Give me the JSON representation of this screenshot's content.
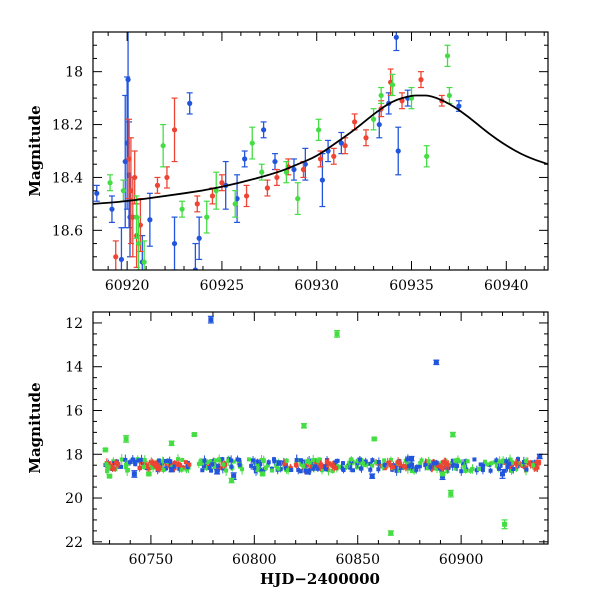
{
  "chart_data": [
    {
      "type": "scatter",
      "panel": "top",
      "xlabel": "",
      "ylabel": "Magnitude",
      "xlim": [
        60918.2,
        60942.2
      ],
      "ylim": [
        18.75,
        17.85
      ],
      "y_inverted": true,
      "xticks": [
        60920,
        60925,
        60930,
        60935,
        60940
      ],
      "yticks": [
        18,
        18.2,
        18.4,
        18.6
      ],
      "ytick_labels": [
        "18",
        "18.2",
        "18.4",
        "18.6"
      ],
      "series": [
        {
          "color": "#2255dd",
          "points": [
            {
              "x": 60918.4,
              "y": 18.46,
              "err": 0.03
            },
            {
              "x": 60919.2,
              "y": 18.52,
              "err": 0.05
            },
            {
              "x": 60919.7,
              "y": 18.71,
              "err": 0.12
            },
            {
              "x": 60919.9,
              "y": 18.34,
              "err": 0.25
            },
            {
              "x": 60920.0,
              "y": 18.27,
              "err": 0.25
            },
            {
              "x": 60920.05,
              "y": 18.03,
              "err": 0.3
            },
            {
              "x": 60920.1,
              "y": 18.39,
              "err": 0.2
            },
            {
              "x": 60920.15,
              "y": 18.55,
              "err": 0.15
            },
            {
              "x": 60920.8,
              "y": 18.72,
              "err": 0.1
            },
            {
              "x": 60921.2,
              "y": 18.56,
              "err": 0.1
            },
            {
              "x": 60922.5,
              "y": 18.65,
              "err": 0.1
            },
            {
              "x": 60923.3,
              "y": 18.12,
              "err": 0.04
            },
            {
              "x": 60923.6,
              "y": 18.75,
              "err": 0.1
            },
            {
              "x": 60923.8,
              "y": 18.63,
              "err": 0.08
            },
            {
              "x": 60925.2,
              "y": 18.43,
              "err": 0.09
            },
            {
              "x": 60925.8,
              "y": 18.48,
              "err": 0.09
            },
            {
              "x": 60926.2,
              "y": 18.33,
              "err": 0.03
            },
            {
              "x": 60927.2,
              "y": 18.22,
              "err": 0.03
            },
            {
              "x": 60927.8,
              "y": 18.34,
              "err": 0.03
            },
            {
              "x": 60928.8,
              "y": 18.37,
              "err": 0.04
            },
            {
              "x": 60929.4,
              "y": 18.35,
              "err": 0.06
            },
            {
              "x": 60930.3,
              "y": 18.41,
              "err": 0.1
            },
            {
              "x": 60930.6,
              "y": 18.3,
              "err": 0.04
            },
            {
              "x": 60931.3,
              "y": 18.27,
              "err": 0.04
            },
            {
              "x": 60933.3,
              "y": 18.2,
              "err": 0.05
            },
            {
              "x": 60933.8,
              "y": 18.12,
              "err": 0.04
            },
            {
              "x": 60934.2,
              "y": 17.87,
              "err": 0.05
            },
            {
              "x": 60934.3,
              "y": 18.3,
              "err": 0.09
            },
            {
              "x": 60934.8,
              "y": 18.1,
              "err": 0.03
            },
            {
              "x": 60937.5,
              "y": 18.13,
              "err": 0.02
            }
          ]
        },
        {
          "color": "#ee4433",
          "points": [
            {
              "x": 60919.4,
              "y": 18.7,
              "err": 0.06
            },
            {
              "x": 60920.1,
              "y": 18.33,
              "err": 0.15
            },
            {
              "x": 60920.2,
              "y": 18.45,
              "err": 0.2
            },
            {
              "x": 60920.3,
              "y": 18.55,
              "err": 0.15
            },
            {
              "x": 60920.4,
              "y": 18.4,
              "err": 0.1
            },
            {
              "x": 60920.5,
              "y": 18.62,
              "err": 0.12
            },
            {
              "x": 60920.7,
              "y": 18.58,
              "err": 0.1
            },
            {
              "x": 60921.6,
              "y": 18.43,
              "err": 0.03
            },
            {
              "x": 60922.1,
              "y": 18.4,
              "err": 0.04
            },
            {
              "x": 60922.5,
              "y": 18.22,
              "err": 0.12
            },
            {
              "x": 60923.7,
              "y": 18.5,
              "err": 0.03
            },
            {
              "x": 60924.5,
              "y": 18.47,
              "err": 0.03
            },
            {
              "x": 60925.0,
              "y": 18.42,
              "err": 0.03
            },
            {
              "x": 60926.3,
              "y": 18.47,
              "err": 0.04
            },
            {
              "x": 60927.4,
              "y": 18.44,
              "err": 0.03
            },
            {
              "x": 60927.9,
              "y": 18.4,
              "err": 0.03
            },
            {
              "x": 60928.5,
              "y": 18.36,
              "err": 0.03
            },
            {
              "x": 60929.3,
              "y": 18.37,
              "err": 0.03
            },
            {
              "x": 60930.2,
              "y": 18.33,
              "err": 0.03
            },
            {
              "x": 60930.9,
              "y": 18.32,
              "err": 0.03
            },
            {
              "x": 60931.5,
              "y": 18.28,
              "err": 0.03
            },
            {
              "x": 60932.0,
              "y": 18.19,
              "err": 0.03
            },
            {
              "x": 60932.6,
              "y": 18.25,
              "err": 0.03
            },
            {
              "x": 60933.4,
              "y": 18.14,
              "err": 0.03
            },
            {
              "x": 60933.9,
              "y": 18.04,
              "err": 0.05
            },
            {
              "x": 60934.5,
              "y": 18.11,
              "err": 0.03
            },
            {
              "x": 60935.5,
              "y": 18.03,
              "err": 0.03
            },
            {
              "x": 60936.6,
              "y": 18.11,
              "err": 0.02
            }
          ]
        },
        {
          "color": "#44dd44",
          "points": [
            {
              "x": 60919.1,
              "y": 18.42,
              "err": 0.03
            },
            {
              "x": 60919.8,
              "y": 18.45,
              "err": 0.04
            },
            {
              "x": 60920.5,
              "y": 18.55,
              "err": 0.08
            },
            {
              "x": 60920.6,
              "y": 18.65,
              "err": 0.1
            },
            {
              "x": 60920.9,
              "y": 18.72,
              "err": 0.08
            },
            {
              "x": 60921.9,
              "y": 18.28,
              "err": 0.08
            },
            {
              "x": 60922.9,
              "y": 18.52,
              "err": 0.03
            },
            {
              "x": 60924.2,
              "y": 18.55,
              "err": 0.06
            },
            {
              "x": 60924.7,
              "y": 18.45,
              "err": 0.07
            },
            {
              "x": 60925.7,
              "y": 18.5,
              "err": 0.05
            },
            {
              "x": 60926.6,
              "y": 18.27,
              "err": 0.06
            },
            {
              "x": 60927.1,
              "y": 18.38,
              "err": 0.03
            },
            {
              "x": 60928.4,
              "y": 18.38,
              "err": 0.04
            },
            {
              "x": 60929.0,
              "y": 18.48,
              "err": 0.06
            },
            {
              "x": 60930.1,
              "y": 18.22,
              "err": 0.04
            },
            {
              "x": 60933.0,
              "y": 18.18,
              "err": 0.04
            },
            {
              "x": 60933.4,
              "y": 18.09,
              "err": 0.03
            },
            {
              "x": 60934.0,
              "y": 18.05,
              "err": 0.04
            },
            {
              "x": 60935.0,
              "y": 18.1,
              "err": 0.04
            },
            {
              "x": 60935.8,
              "y": 18.32,
              "err": 0.04
            },
            {
              "x": 60936.9,
              "y": 17.94,
              "err": 0.04
            },
            {
              "x": 60937.0,
              "y": 18.09,
              "err": 0.03
            }
          ]
        }
      ],
      "model_curve": {
        "color": "#000000",
        "x": [
          60918.2,
          60920,
          60922,
          60924,
          60926,
          60928,
          60929,
          60930,
          60931,
          60932,
          60933,
          60934,
          60935,
          60935.5,
          60936,
          60937,
          60938,
          60939,
          60940,
          60941,
          60942.2
        ],
        "y": [
          18.5,
          18.49,
          18.47,
          18.45,
          18.42,
          18.38,
          18.35,
          18.32,
          18.27,
          18.22,
          18.16,
          18.11,
          18.09,
          18.09,
          18.09,
          18.12,
          18.17,
          18.23,
          18.28,
          18.32,
          18.35
        ]
      }
    },
    {
      "type": "scatter",
      "panel": "bottom",
      "xlabel": "HJD−2400000",
      "ylabel": "Magnitude",
      "xlim": [
        60722,
        60942
      ],
      "ylim": [
        22.1,
        11.5
      ],
      "y_inverted": true,
      "xticks": [
        60750,
        60800,
        60850,
        60900
      ],
      "yticks": [
        12,
        14,
        16,
        18,
        20,
        22
      ],
      "series": [
        {
          "color": "#2255dd",
          "points": [
            {
              "x": 60742,
              "y": 18.9,
              "err": 0.15
            },
            {
              "x": 60760,
              "y": 18.7,
              "err": 0.1
            },
            {
              "x": 60779,
              "y": 11.85,
              "err": 0.15
            },
            {
              "x": 60782,
              "y": 18.8,
              "err": 0.1
            },
            {
              "x": 60790,
              "y": 19.0,
              "err": 0.15
            },
            {
              "x": 60812,
              "y": 18.4,
              "err": 0.1
            },
            {
              "x": 60826,
              "y": 18.8,
              "err": 0.1
            },
            {
              "x": 60857,
              "y": 19.0,
              "err": 0.1
            },
            {
              "x": 60876,
              "y": 18.2,
              "err": 0.1
            },
            {
              "x": 60888,
              "y": 13.8,
              "err": 0.1
            },
            {
              "x": 60891,
              "y": 19.0,
              "err": 0.15
            },
            {
              "x": 60920,
              "y": 18.9,
              "err": 0.2
            },
            {
              "x": 60938,
              "y": 18.1,
              "err": 0.1
            }
          ]
        },
        {
          "color": "#44dd44",
          "points": [
            {
              "x": 60728,
              "y": 17.8,
              "err": 0.05
            },
            {
              "x": 60730,
              "y": 19.0,
              "err": 0.05
            },
            {
              "x": 60738,
              "y": 17.3,
              "err": 0.15
            },
            {
              "x": 60749,
              "y": 18.9,
              "err": 0.05
            },
            {
              "x": 60760,
              "y": 17.5,
              "err": 0.1
            },
            {
              "x": 60771,
              "y": 17.1,
              "err": 0.05
            },
            {
              "x": 60789,
              "y": 19.2,
              "err": 0.1
            },
            {
              "x": 60804,
              "y": 18.9,
              "err": 0.05
            },
            {
              "x": 60824,
              "y": 16.7,
              "err": 0.1
            },
            {
              "x": 60840,
              "y": 12.5,
              "err": 0.15
            },
            {
              "x": 60858,
              "y": 17.3,
              "err": 0.05
            },
            {
              "x": 60866,
              "y": 21.6,
              "err": 0.1
            },
            {
              "x": 60891,
              "y": 18.9,
              "err": 0.05
            },
            {
              "x": 60895,
              "y": 19.8,
              "err": 0.15
            },
            {
              "x": 60896,
              "y": 17.1,
              "err": 0.1
            },
            {
              "x": 60921,
              "y": 21.2,
              "err": 0.2
            }
          ]
        },
        {
          "color": "#ee4433",
          "points": []
        }
      ],
      "dense_band": {
        "x_range": [
          60728,
          60938
        ],
        "y_center": 18.5,
        "y_spread": 0.35
      }
    }
  ]
}
